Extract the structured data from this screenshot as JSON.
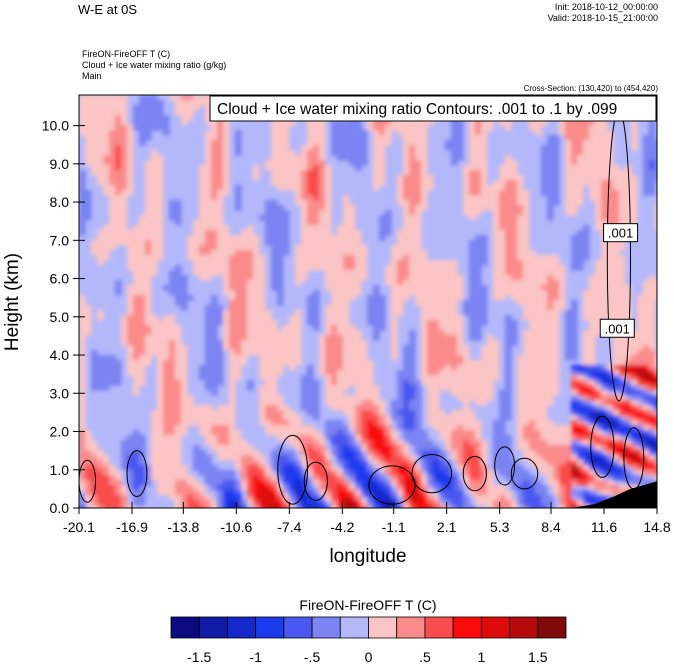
{
  "header": {
    "title": "W-E at 0S",
    "init": "Init: 2018-10-12_00:00:00",
    "valid": "Valid: 2018-10-15_21:00:00",
    "field_line1": "FireON-FireOFF T   (C)",
    "field_line2": "Cloud + Ice water mixing ratio   (g/kg)",
    "field_line3": "Main",
    "cross_section": "Cross-Section: (130,420) to (454,420)",
    "contour_info": "Cloud + Ice water mixing ratio Contours: .001 to .1 by .099"
  },
  "chart_data": {
    "type": "heatmap",
    "xlabel": "longitude",
    "ylabel": "Height (km)",
    "x_ticks": [
      "-20.1",
      "-16.9",
      "-13.8",
      "-10.6",
      "-7.4",
      "-4.2",
      "-1.1",
      "2.1",
      "5.3",
      "8.4",
      "11.6",
      "14.8"
    ],
    "y_ticks": [
      "0.0",
      "1.0",
      "2.0",
      "3.0",
      "4.0",
      "5.0",
      "6.0",
      "7.0",
      "8.0",
      "9.0",
      "10.0"
    ],
    "xlim": [
      -20.1,
      14.8
    ],
    "ylim": [
      0.0,
      10.8
    ],
    "contour_labels": [
      {
        "text": ".001",
        "lon": 12.6,
        "height_km": 7.2
      },
      {
        "text": ".001",
        "lon": 12.4,
        "height_km": 4.7
      }
    ],
    "colorbar": {
      "title": "FireON-FireOFF T  (C)",
      "labels": [
        "-1.5",
        "-1",
        "-.5",
        "0",
        ".5",
        "1",
        "1.5"
      ],
      "colors": [
        "#0b0a80",
        "#101ca8",
        "#1628cc",
        "#1c3aee",
        "#4a57f0",
        "#7c83f2",
        "#b3b8fb",
        "#fbc5c5",
        "#fb8a8a",
        "#fa4c4c",
        "#fa0a0a",
        "#dc0a0a",
        "#b40a0a",
        "#800a0a"
      ],
      "levels": [
        -1.75,
        -1.5,
        -1.25,
        -1.0,
        -0.75,
        -0.5,
        -0.25,
        0,
        0.25,
        0.5,
        0.75,
        1.0,
        1.25,
        1.5,
        1.75
      ]
    }
  }
}
